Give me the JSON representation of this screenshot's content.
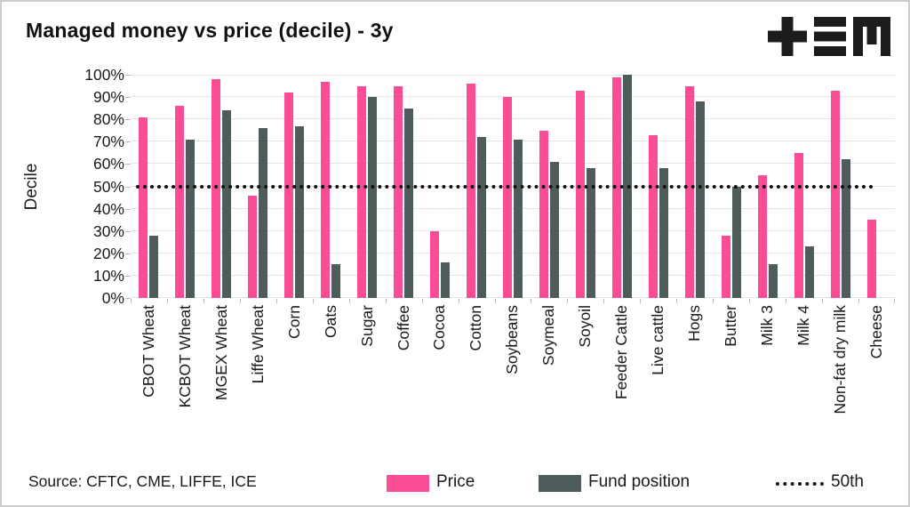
{
  "title": "Managed money vs price (decile) - 3y",
  "logo": {
    "name": "tem-logo"
  },
  "chart_data": {
    "type": "bar",
    "title": "Managed money vs price (decile) - 3y",
    "xlabel": "",
    "ylabel": "Decile",
    "ylim": [
      0,
      100
    ],
    "grid": true,
    "legend_position": "bottom",
    "yticks": [
      "0%",
      "10%",
      "20%",
      "30%",
      "40%",
      "50%",
      "60%",
      "70%",
      "80%",
      "90%",
      "100%"
    ],
    "categories": [
      "CBOT Wheat",
      "KCBOT Wheat",
      "MGEX Wheat",
      "Liffe Wheat",
      "Corn",
      "Oats",
      "Sugar",
      "Coffee",
      "Cocoa",
      "Cotton",
      "Soybeans",
      "Soymeal",
      "Soyoil",
      "Feeder Cattle",
      "Live cattle",
      "Hogs",
      "Butter",
      "Milk 3",
      "Milk 4",
      "Non-fat dry milk",
      "Cheese"
    ],
    "series": [
      {
        "name": "Price",
        "color": "#fb4d96",
        "values": [
          81,
          86,
          98,
          46,
          92,
          97,
          95,
          95,
          30,
          96,
          90,
          75,
          93,
          99,
          73,
          95,
          28,
          55,
          65,
          93,
          35
        ]
      },
      {
        "name": "Fund position",
        "color": "#4e5d5c",
        "values": [
          28,
          71,
          84,
          76,
          77,
          15,
          90,
          85,
          16,
          72,
          71,
          61,
          58,
          100,
          58,
          88,
          50,
          15,
          23,
          62,
          null
        ]
      }
    ],
    "reference_line": {
      "label": "50th",
      "value": 50,
      "style": "dotted",
      "color": "#111111"
    }
  },
  "footer": {
    "source": "Source: CFTC, CME, LIFFE, ICE"
  },
  "colors": {
    "price": "#fb4d96",
    "fund": "#4e5d5c",
    "grid": "#e4e4e4",
    "text": "#1a1a1a"
  }
}
